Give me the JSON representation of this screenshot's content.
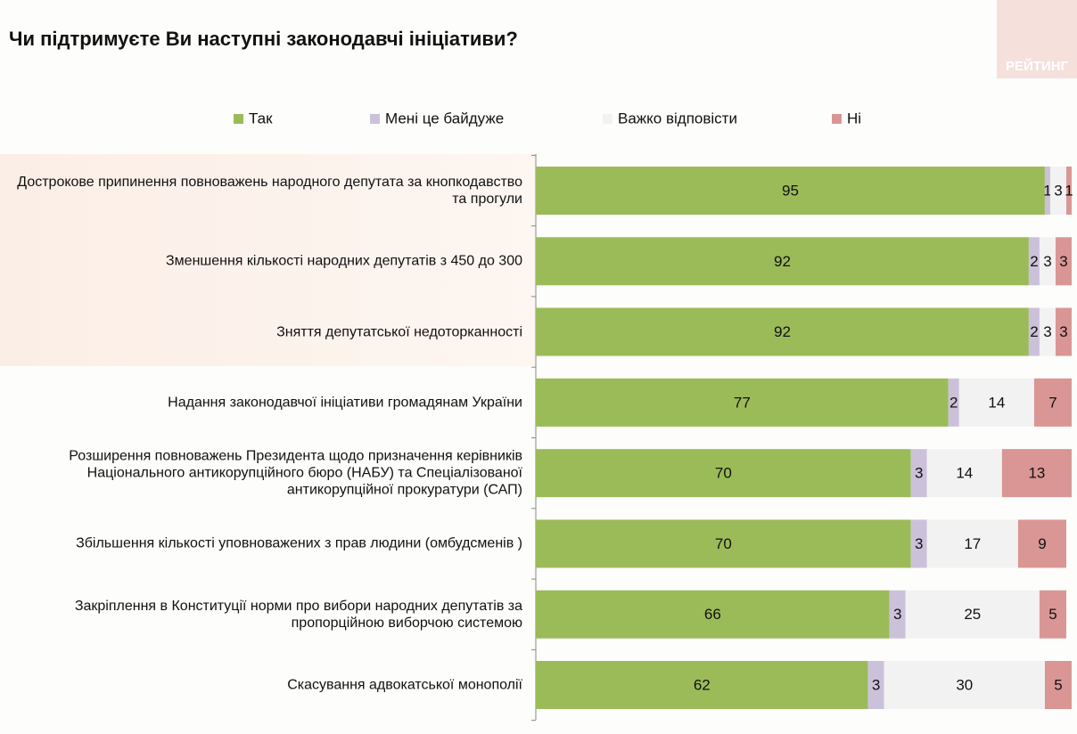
{
  "logo": "РЕЙТИНГ",
  "chart_data": {
    "type": "stacked-bar-horizontal",
    "title": "Чи підтримуєте Ви наступні законодавчі ініціативи?",
    "categories": [
      "Дострокове припинення повноважень народного депутата за кнопкодавство та прогули",
      "Зменшення кількості народних депутатів  з 450 до 300",
      "Зняття депутатської недоторканності",
      "Надання законодавчої ініціативи громадянам України",
      "Розширення повноважень Президента щодо призначення керівників Національного антикорупційного бюро (НАБУ) та Спеціалізованої антикорупційної прокуратури (САП)",
      "Збільшення кількості уповноважених з прав людини (омбудсменів )",
      "Закріплення в Конституції норми про вибори народних депутатів за пропорційною виборчою системою",
      "Скасування адвокатської монополії"
    ],
    "series": [
      {
        "name": "Так",
        "color": "#9bbb59",
        "values": [
          95,
          92,
          92,
          77,
          70,
          70,
          66,
          62
        ]
      },
      {
        "name": "Мені це байдуже",
        "color": "#ccc1da",
        "values": [
          1,
          2,
          2,
          2,
          3,
          3,
          3,
          3
        ]
      },
      {
        "name": "Важко відповісти",
        "color": "#f2f2f2",
        "values": [
          3,
          3,
          3,
          14,
          14,
          17,
          25,
          30
        ]
      },
      {
        "name": "Ні",
        "color": "#d99694",
        "values": [
          1,
          3,
          3,
          7,
          13,
          9,
          5,
          5
        ]
      }
    ],
    "xlim": [
      0,
      100
    ],
    "legend": "top"
  }
}
